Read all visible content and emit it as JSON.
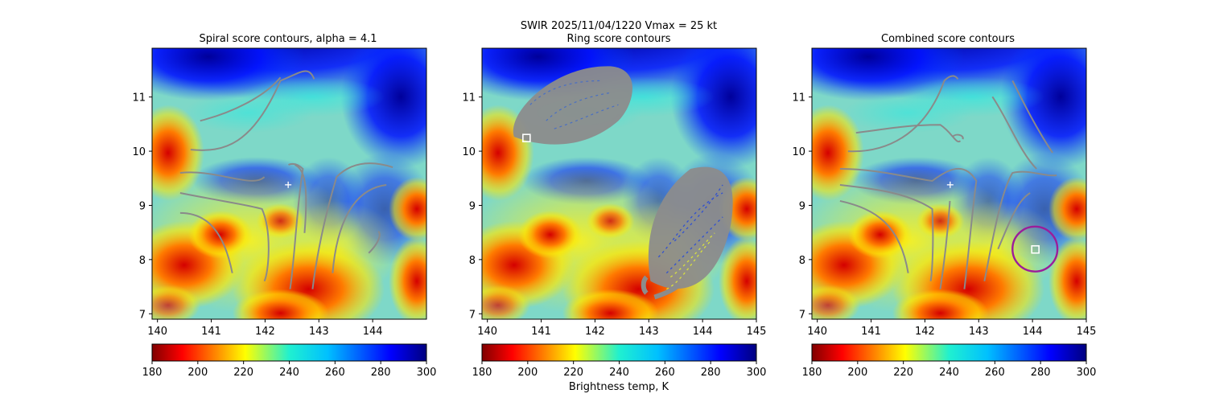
{
  "figure": {
    "suptitle_line1": "SWIR  2025/11/04/1220    Vmax = 25 kt",
    "suptitle_line2": "Ring score contours",
    "colorbar_label": "Brightness temp, K",
    "colormap": "jet_r"
  },
  "chart_data": [
    {
      "type": "heatmap",
      "title": "Spiral score contours, alpha =  4.1",
      "xlim": [
        139.9,
        145.0
      ],
      "ylim": [
        6.9,
        11.9
      ],
      "xticks": [
        140,
        141,
        142,
        143,
        144
      ],
      "yticks": [
        7,
        8,
        9,
        10,
        11
      ],
      "colorbar": {
        "min": 180,
        "max": 300,
        "ticks": [
          180,
          200,
          220,
          240,
          260,
          280,
          300
        ]
      },
      "center_marker": {
        "x": 142.43,
        "y": 9.38,
        "symbol": "+",
        "color": "#ffffff"
      },
      "overlay": "spiral score contours",
      "contour_color": "#888888"
    },
    {
      "type": "heatmap",
      "title": "Ring score contours",
      "xlim": [
        139.9,
        145.0
      ],
      "ylim": [
        6.9,
        11.9
      ],
      "xticks": [
        140,
        141,
        142,
        143,
        144,
        145
      ],
      "yticks": [
        7,
        8,
        9,
        10,
        11
      ],
      "colorbar": {
        "min": 180,
        "max": 300,
        "ticks": [
          180,
          200,
          220,
          240,
          260,
          280,
          300
        ]
      },
      "best_ring_center": {
        "x": 140.72,
        "y": 10.23,
        "symbol": "square",
        "color": "#ffffff"
      },
      "overlay": "ring score contours",
      "contour_color": "#888888"
    },
    {
      "type": "heatmap",
      "title": "Combined score contours",
      "xlim": [
        139.9,
        145.0
      ],
      "ylim": [
        6.9,
        11.9
      ],
      "xticks": [
        140,
        141,
        142,
        143,
        144,
        145
      ],
      "yticks": [
        7,
        8,
        9,
        10,
        11
      ],
      "colorbar": {
        "min": 180,
        "max": 300,
        "ticks": [
          180,
          200,
          220,
          240,
          260,
          280,
          300
        ]
      },
      "center_marker": {
        "x": 142.47,
        "y": 9.38,
        "symbol": "+",
        "color": "#ffffff"
      },
      "combined_center": {
        "x": 144.05,
        "y": 8.17,
        "symbol": "square",
        "color": "#ffffff"
      },
      "combined_ring": {
        "x": 144.05,
        "y": 8.17,
        "radius_deg": 0.4,
        "color": "#9b1d9b"
      },
      "overlay": "combined score contours",
      "contour_color": "#888888"
    }
  ]
}
